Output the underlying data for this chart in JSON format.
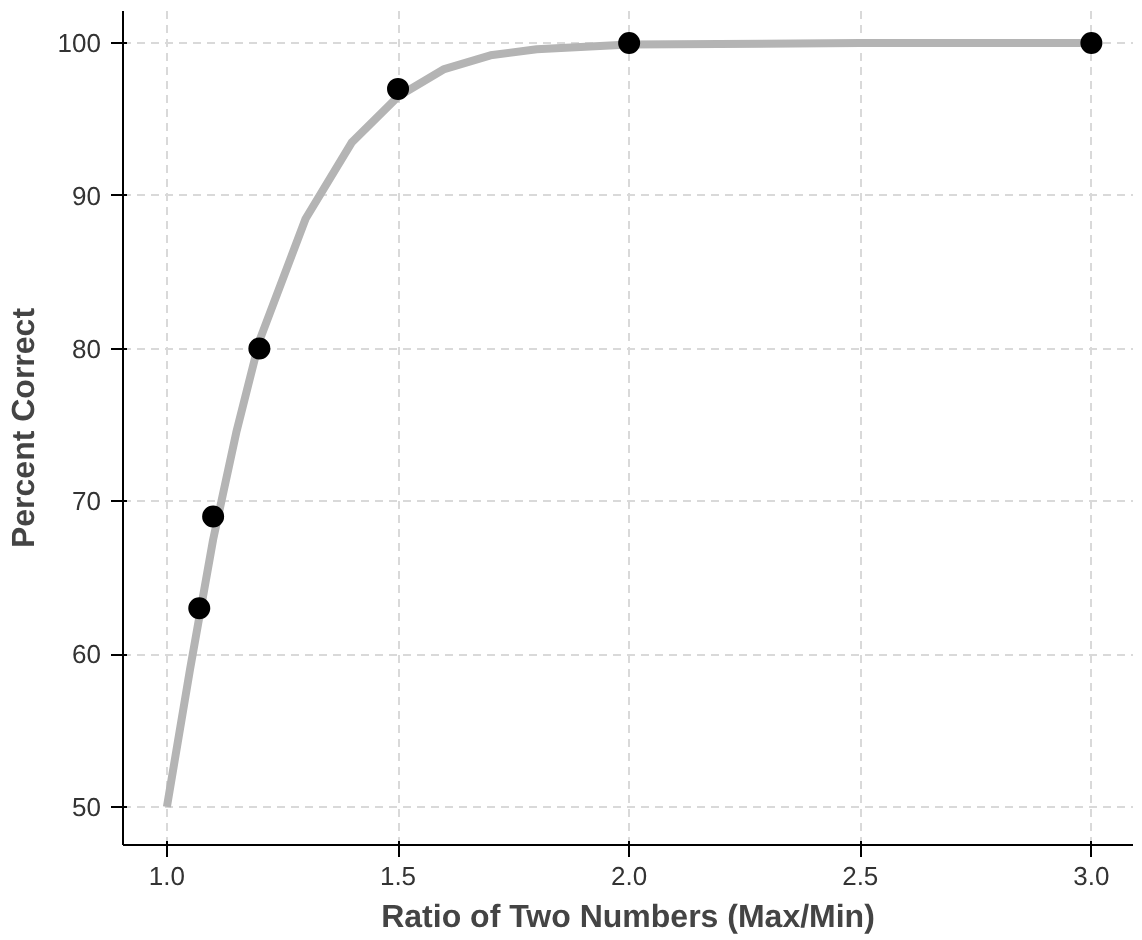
{
  "chart_data": {
    "type": "scatter",
    "xlabel": "Ratio of Two Numbers (Max/Min)",
    "ylabel": "Percent Correct",
    "xlim": [
      0.905,
      3.09
    ],
    "ylim": [
      47.5,
      102.1
    ],
    "xticks": [
      {
        "value": 1.0,
        "label": "1.0"
      },
      {
        "value": 1.5,
        "label": "1.5"
      },
      {
        "value": 2.0,
        "label": "2.0"
      },
      {
        "value": 2.5,
        "label": "2.5"
      },
      {
        "value": 3.0,
        "label": "3.0"
      }
    ],
    "yticks": [
      50,
      60,
      70,
      80,
      90,
      100
    ],
    "grid": true,
    "marker": "circle",
    "series": [
      {
        "type": "line",
        "color": "#b4b4b4",
        "line_style": "solid",
        "marker": "none",
        "x": [
          1.0,
          1.05,
          1.1,
          1.15,
          1.2,
          1.3,
          1.4,
          1.5,
          1.6,
          1.7,
          1.8,
          2.0,
          2.5,
          3.0
        ],
        "values": [
          50,
          59,
          67.5,
          74.5,
          80.5,
          88.5,
          93.5,
          96.5,
          98.3,
          99.2,
          99.6,
          99.9,
          100,
          100
        ]
      },
      {
        "color": "#000000",
        "x": [
          1.07,
          1.1,
          1.2,
          1.5,
          2.0,
          3.0
        ],
        "values": [
          63,
          69,
          80,
          97,
          100,
          100
        ]
      }
    ]
  }
}
